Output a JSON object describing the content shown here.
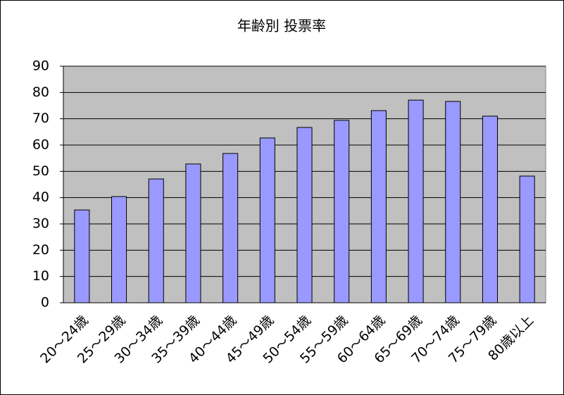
{
  "chart_data": {
    "type": "bar",
    "title": "年齢別 投票率",
    "categories": [
      "20～24歳",
      "25～29歳",
      "30～34歳",
      "35～39歳",
      "40～44歳",
      "45～49歳",
      "50～54歳",
      "55～59歳",
      "60～64歳",
      "65～69歳",
      "70～74歳",
      "75～79歳",
      "80歳以上"
    ],
    "values": [
      35.3,
      40.4,
      47.1,
      52.8,
      56.8,
      62.7,
      66.7,
      69.4,
      73.1,
      77.1,
      76.6,
      71.0,
      48.2
    ],
    "color": "#9999ff",
    "ylim": [
      0,
      90
    ],
    "yticks": [
      0,
      10,
      20,
      30,
      40,
      50,
      60,
      70,
      80,
      90
    ],
    "grid": true
  }
}
